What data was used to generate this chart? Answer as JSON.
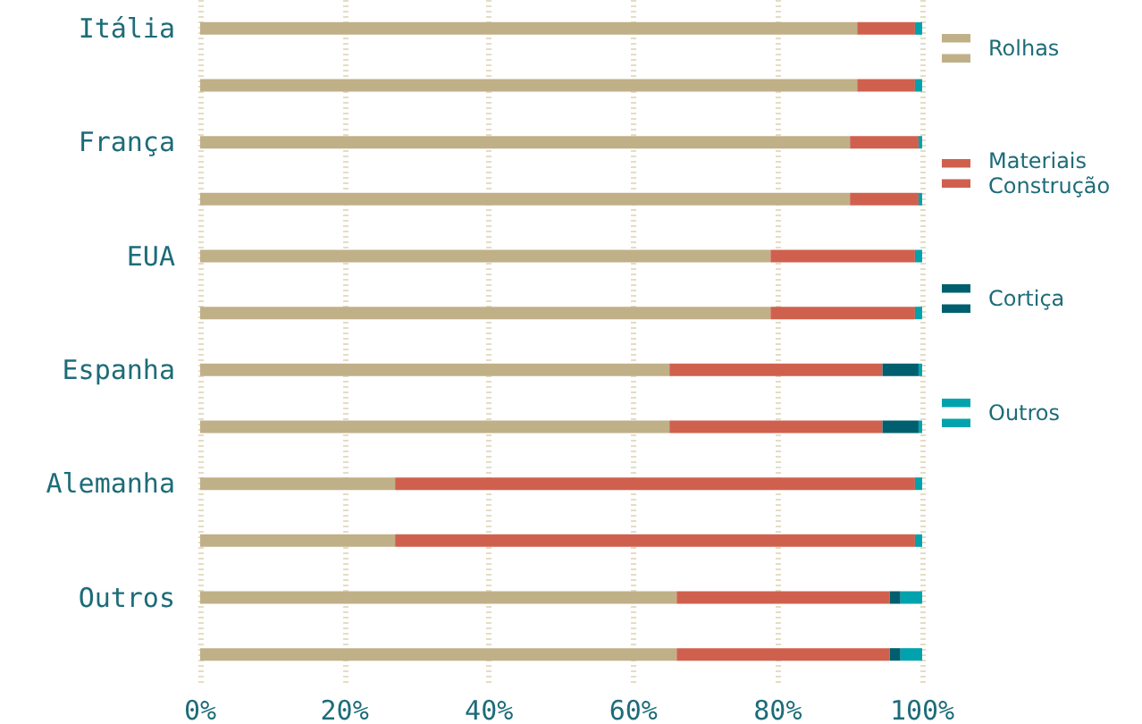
{
  "chart_data": {
    "type": "bar",
    "orientation": "horizontal",
    "stacked": true,
    "categories": [
      "Itália",
      null,
      "França",
      null,
      "EUA",
      null,
      "Espanha",
      null,
      "Alemanha",
      null,
      "Outros",
      null
    ],
    "series": [
      {
        "name": "Rolhas",
        "color": "#c0b088",
        "values": [
          91,
          91,
          90,
          90,
          79,
          79,
          65,
          65,
          27,
          27,
          66,
          66
        ]
      },
      {
        "name": "Materiais Construção",
        "color": "#d0604e",
        "values": [
          8,
          8,
          9.5,
          9.5,
          20,
          20,
          29.5,
          29.5,
          72,
          72,
          29.5,
          29.5
        ]
      },
      {
        "name": "Cortiça",
        "color": "#005f6e",
        "values": [
          0,
          0,
          0,
          0,
          0,
          0,
          5,
          5,
          0,
          0,
          1.5,
          1.5
        ]
      },
      {
        "name": "Outros",
        "color": "#00a3ad",
        "values": [
          1,
          1,
          0.5,
          0.5,
          1,
          1,
          0.5,
          0.5,
          1,
          1,
          3,
          3
        ]
      }
    ],
    "xlim": [
      0,
      100
    ],
    "xticks": [
      {
        "value": 0,
        "label": "0%"
      },
      {
        "value": 20,
        "label": "20%"
      },
      {
        "value": 40,
        "label": "40%"
      },
      {
        "value": 60,
        "label": "60%"
      },
      {
        "value": 80,
        "label": "80%"
      },
      {
        "value": 100,
        "label": "100%"
      }
    ],
    "grid": "x",
    "legend": "right"
  }
}
